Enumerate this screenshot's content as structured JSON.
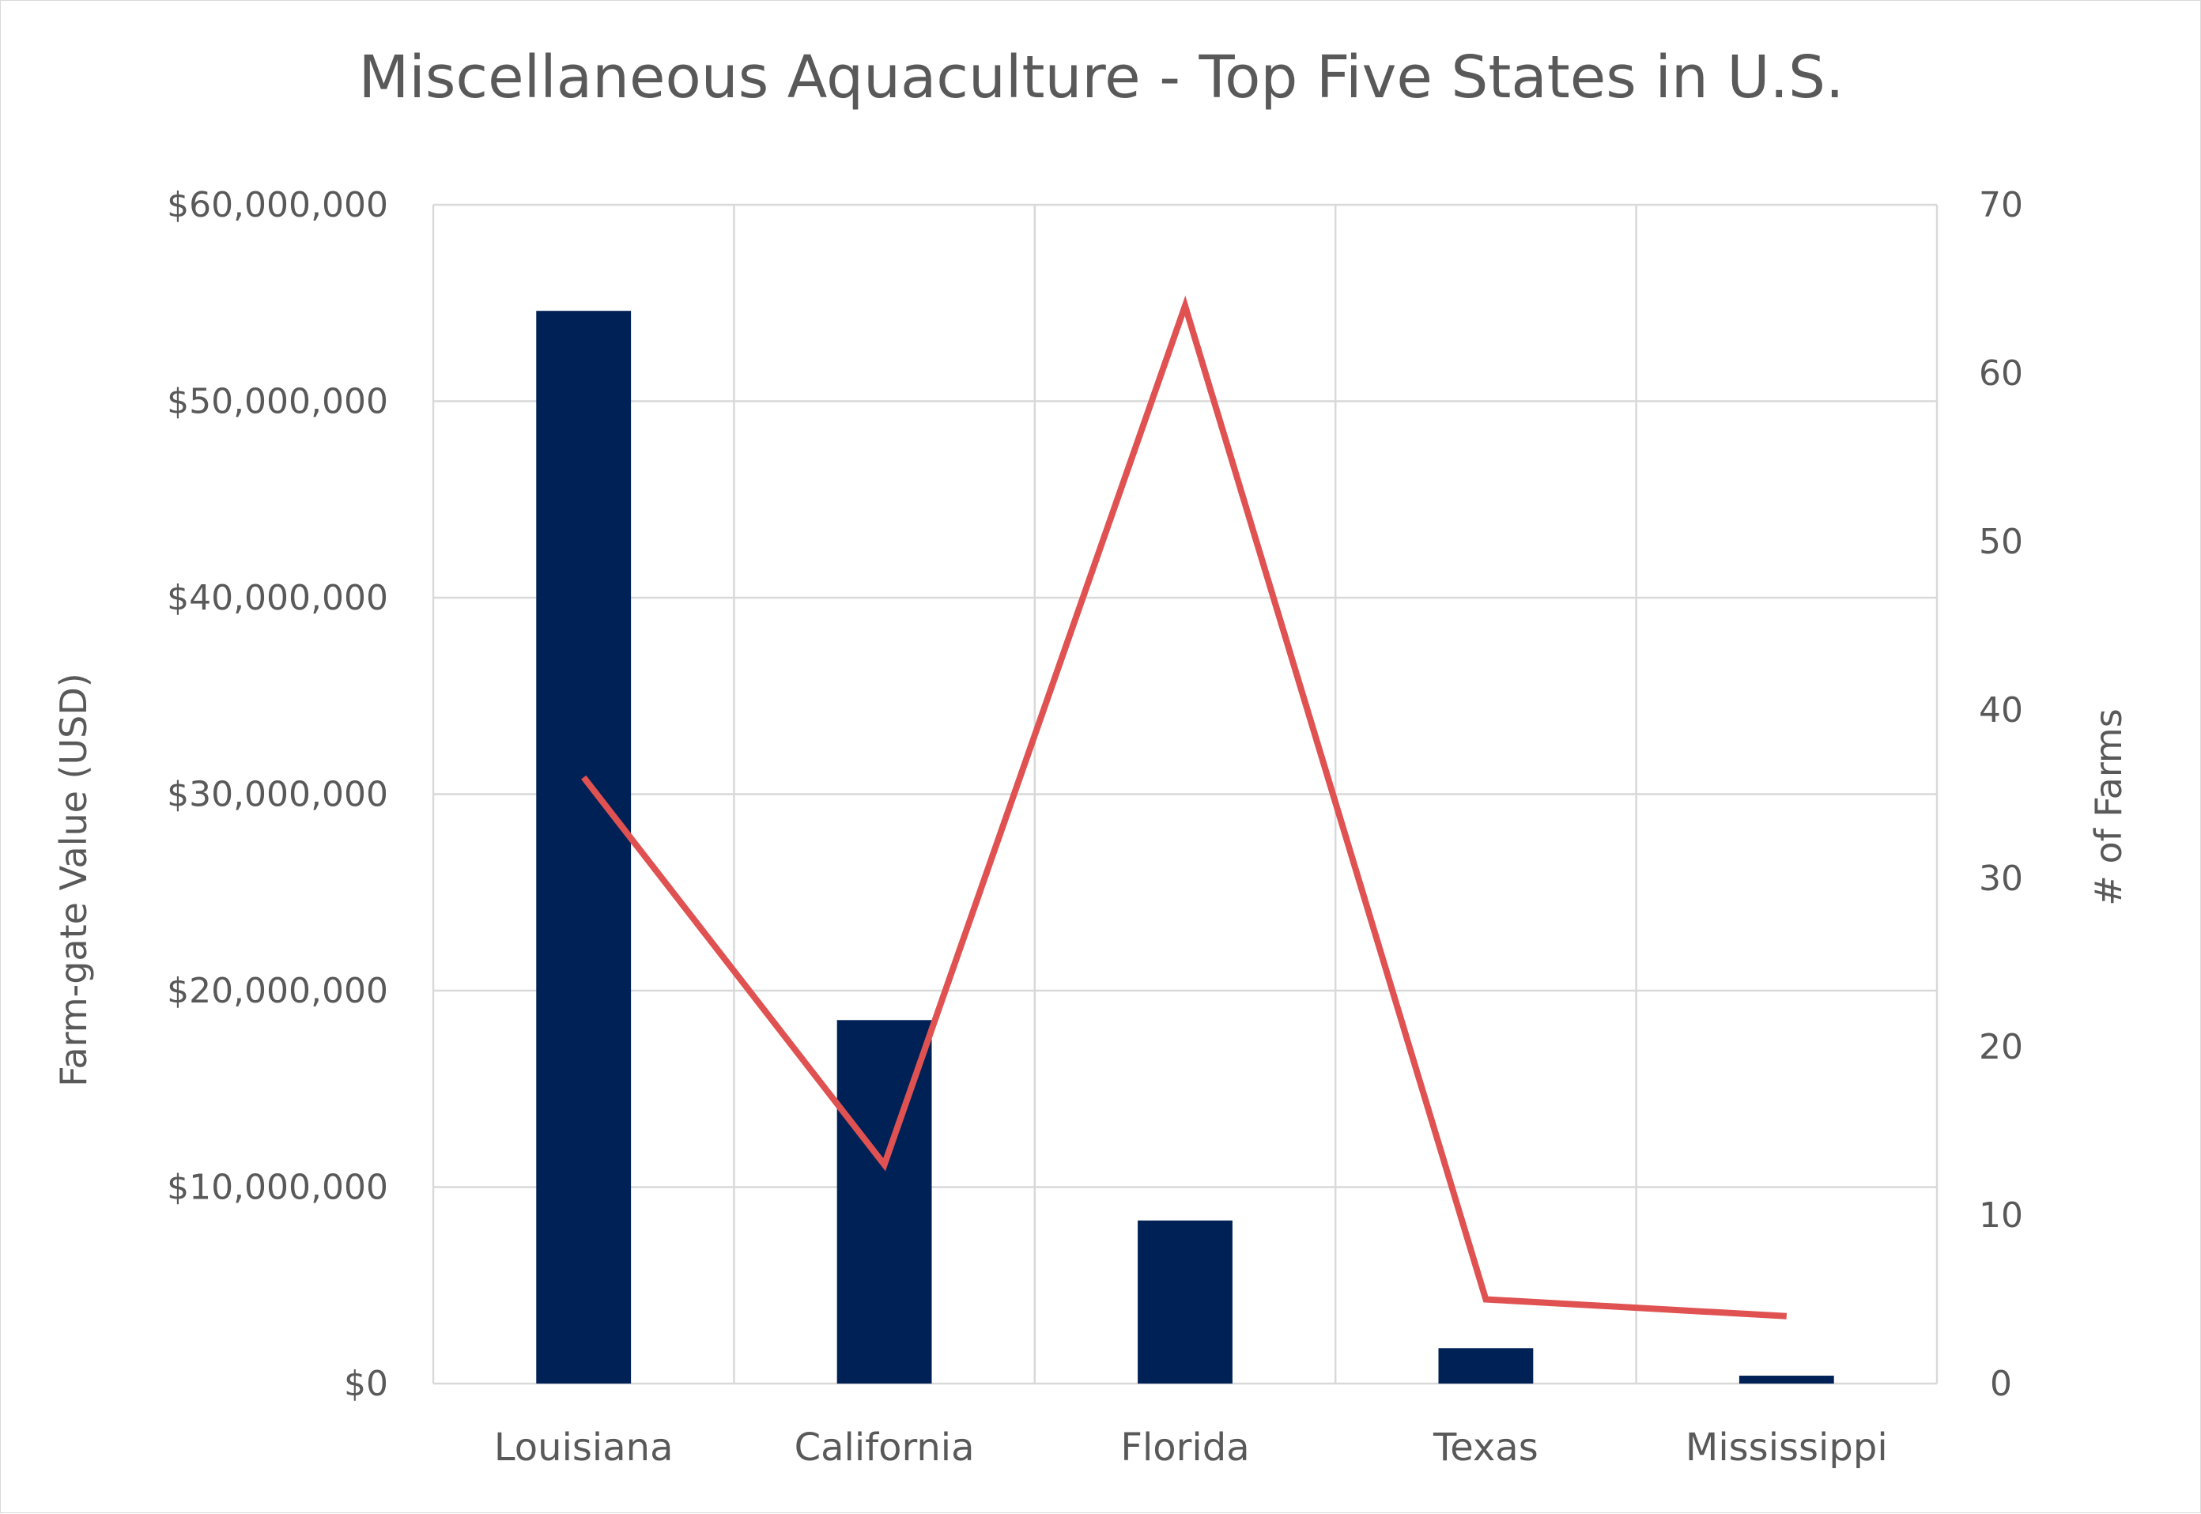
{
  "chart_data": {
    "type": "bar+line",
    "title": "Miscellaneous Aquaculture - Top Five States in U.S.",
    "categories": [
      "Louisiana",
      "California",
      "Florida",
      "Texas",
      "Mississippi"
    ],
    "series": [
      {
        "type": "bar",
        "axis": "left",
        "values": [
          54600000,
          18500000,
          8300000,
          1800000,
          400000
        ],
        "color": "#002156"
      },
      {
        "type": "line",
        "axis": "right",
        "values": [
          36,
          13,
          64,
          5,
          4
        ],
        "color": "#e05252"
      }
    ],
    "y_left": {
      "label": "Farm-gate Value (USD)",
      "ylim": [
        0,
        60000000
      ],
      "ticks": [
        0,
        10000000,
        20000000,
        30000000,
        40000000,
        50000000,
        60000000
      ],
      "tick_labels": [
        "$0",
        "$10,000,000",
        "$20,000,000",
        "$30,000,000",
        "$40,000,000",
        "$50,000,000",
        "$60,000,000"
      ]
    },
    "y_right": {
      "label": "# of Farms",
      "ylim": [
        0,
        70
      ],
      "ticks": [
        0,
        10,
        20,
        30,
        40,
        50,
        60,
        70
      ],
      "tick_labels": [
        "0",
        "10",
        "20",
        "30",
        "40",
        "50",
        "60",
        "70"
      ]
    },
    "grid": true,
    "legend": "none"
  }
}
